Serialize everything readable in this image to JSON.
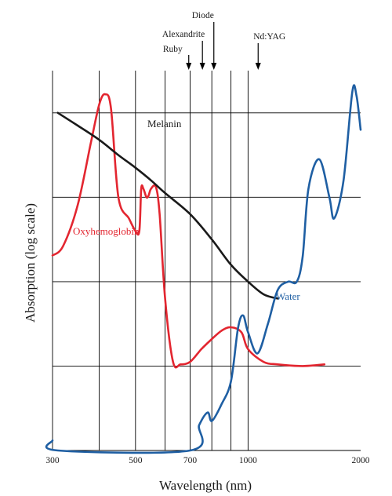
{
  "chart_data": {
    "type": "line",
    "title": "",
    "xlabel": "Wavelength (nm)",
    "ylabel": "Absorption (log scale)",
    "x_scale": "log",
    "xlim": [
      300,
      2000
    ],
    "x_ticks": [
      {
        "value": 300,
        "label": "300"
      },
      {
        "value": 500,
        "label": "500"
      },
      {
        "value": 700,
        "label": "700"
      },
      {
        "value": 1000,
        "label": "1000"
      },
      {
        "value": 2000,
        "label": "2000"
      }
    ],
    "x_gridlines": [
      300,
      400,
      500,
      600,
      700,
      800,
      900,
      1000
    ],
    "y_gridlines": [
      1,
      2,
      3,
      4
    ],
    "ylim": [
      0,
      4.5
    ],
    "grid": true,
    "lasers": [
      {
        "name": "Ruby",
        "wavelength": 694
      },
      {
        "name": "Alexandrite",
        "wavelength": 755
      },
      {
        "name": "Diode",
        "wavelength": 810
      },
      {
        "name": "Nd:YAG",
        "wavelength": 1064
      }
    ],
    "series": [
      {
        "name": "Oxyhemoglobin",
        "color": "#e32630",
        "points": [
          [
            300,
            2.31
          ],
          [
            320,
            2.42
          ],
          [
            350,
            2.9
          ],
          [
            380,
            3.65
          ],
          [
            400,
            4.1
          ],
          [
            415,
            4.22
          ],
          [
            430,
            4.05
          ],
          [
            450,
            3.0
          ],
          [
            480,
            2.75
          ],
          [
            500,
            2.6
          ],
          [
            512,
            2.6
          ],
          [
            518,
            3.1
          ],
          [
            525,
            3.1
          ],
          [
            535,
            3.0
          ],
          [
            542,
            3.02
          ],
          [
            550,
            3.1
          ],
          [
            567,
            3.12
          ],
          [
            580,
            2.8
          ],
          [
            600,
            1.8
          ],
          [
            630,
            1.05
          ],
          [
            660,
            1.02
          ],
          [
            700,
            1.05
          ],
          [
            750,
            1.2
          ],
          [
            800,
            1.32
          ],
          [
            850,
            1.42
          ],
          [
            900,
            1.46
          ],
          [
            960,
            1.4
          ],
          [
            1000,
            1.2
          ],
          [
            1100,
            1.05
          ],
          [
            1200,
            1.02
          ],
          [
            1400,
            1.0
          ],
          [
            1600,
            1.02
          ]
        ]
      },
      {
        "name": "Melanin",
        "color": "#1a1a1a",
        "points": [
          [
            310,
            4.0
          ],
          [
            350,
            3.85
          ],
          [
            400,
            3.68
          ],
          [
            450,
            3.5
          ],
          [
            500,
            3.35
          ],
          [
            550,
            3.2
          ],
          [
            600,
            3.05
          ],
          [
            700,
            2.8
          ],
          [
            800,
            2.5
          ],
          [
            900,
            2.2
          ],
          [
            1000,
            2.0
          ],
          [
            1100,
            1.85
          ],
          [
            1200,
            1.8
          ]
        ]
      },
      {
        "name": "Water",
        "color": "#1f5fa3",
        "points": [
          [
            300,
            0.12
          ],
          [
            310,
            0.0
          ],
          [
            700,
            0.0
          ],
          [
            740,
            0.3
          ],
          [
            780,
            0.45
          ],
          [
            800,
            0.35
          ],
          [
            850,
            0.55
          ],
          [
            900,
            0.82
          ],
          [
            940,
            1.45
          ],
          [
            970,
            1.6
          ],
          [
            1000,
            1.4
          ],
          [
            1060,
            1.15
          ],
          [
            1130,
            1.5
          ],
          [
            1200,
            1.9
          ],
          [
            1280,
            2.0
          ],
          [
            1350,
            2.0
          ],
          [
            1400,
            2.3
          ],
          [
            1450,
            3.1
          ],
          [
            1550,
            3.45
          ],
          [
            1650,
            3.0
          ],
          [
            1700,
            2.75
          ],
          [
            1800,
            3.2
          ],
          [
            1900,
            4.25
          ],
          [
            1950,
            4.2
          ],
          [
            2000,
            3.8
          ]
        ]
      }
    ]
  }
}
